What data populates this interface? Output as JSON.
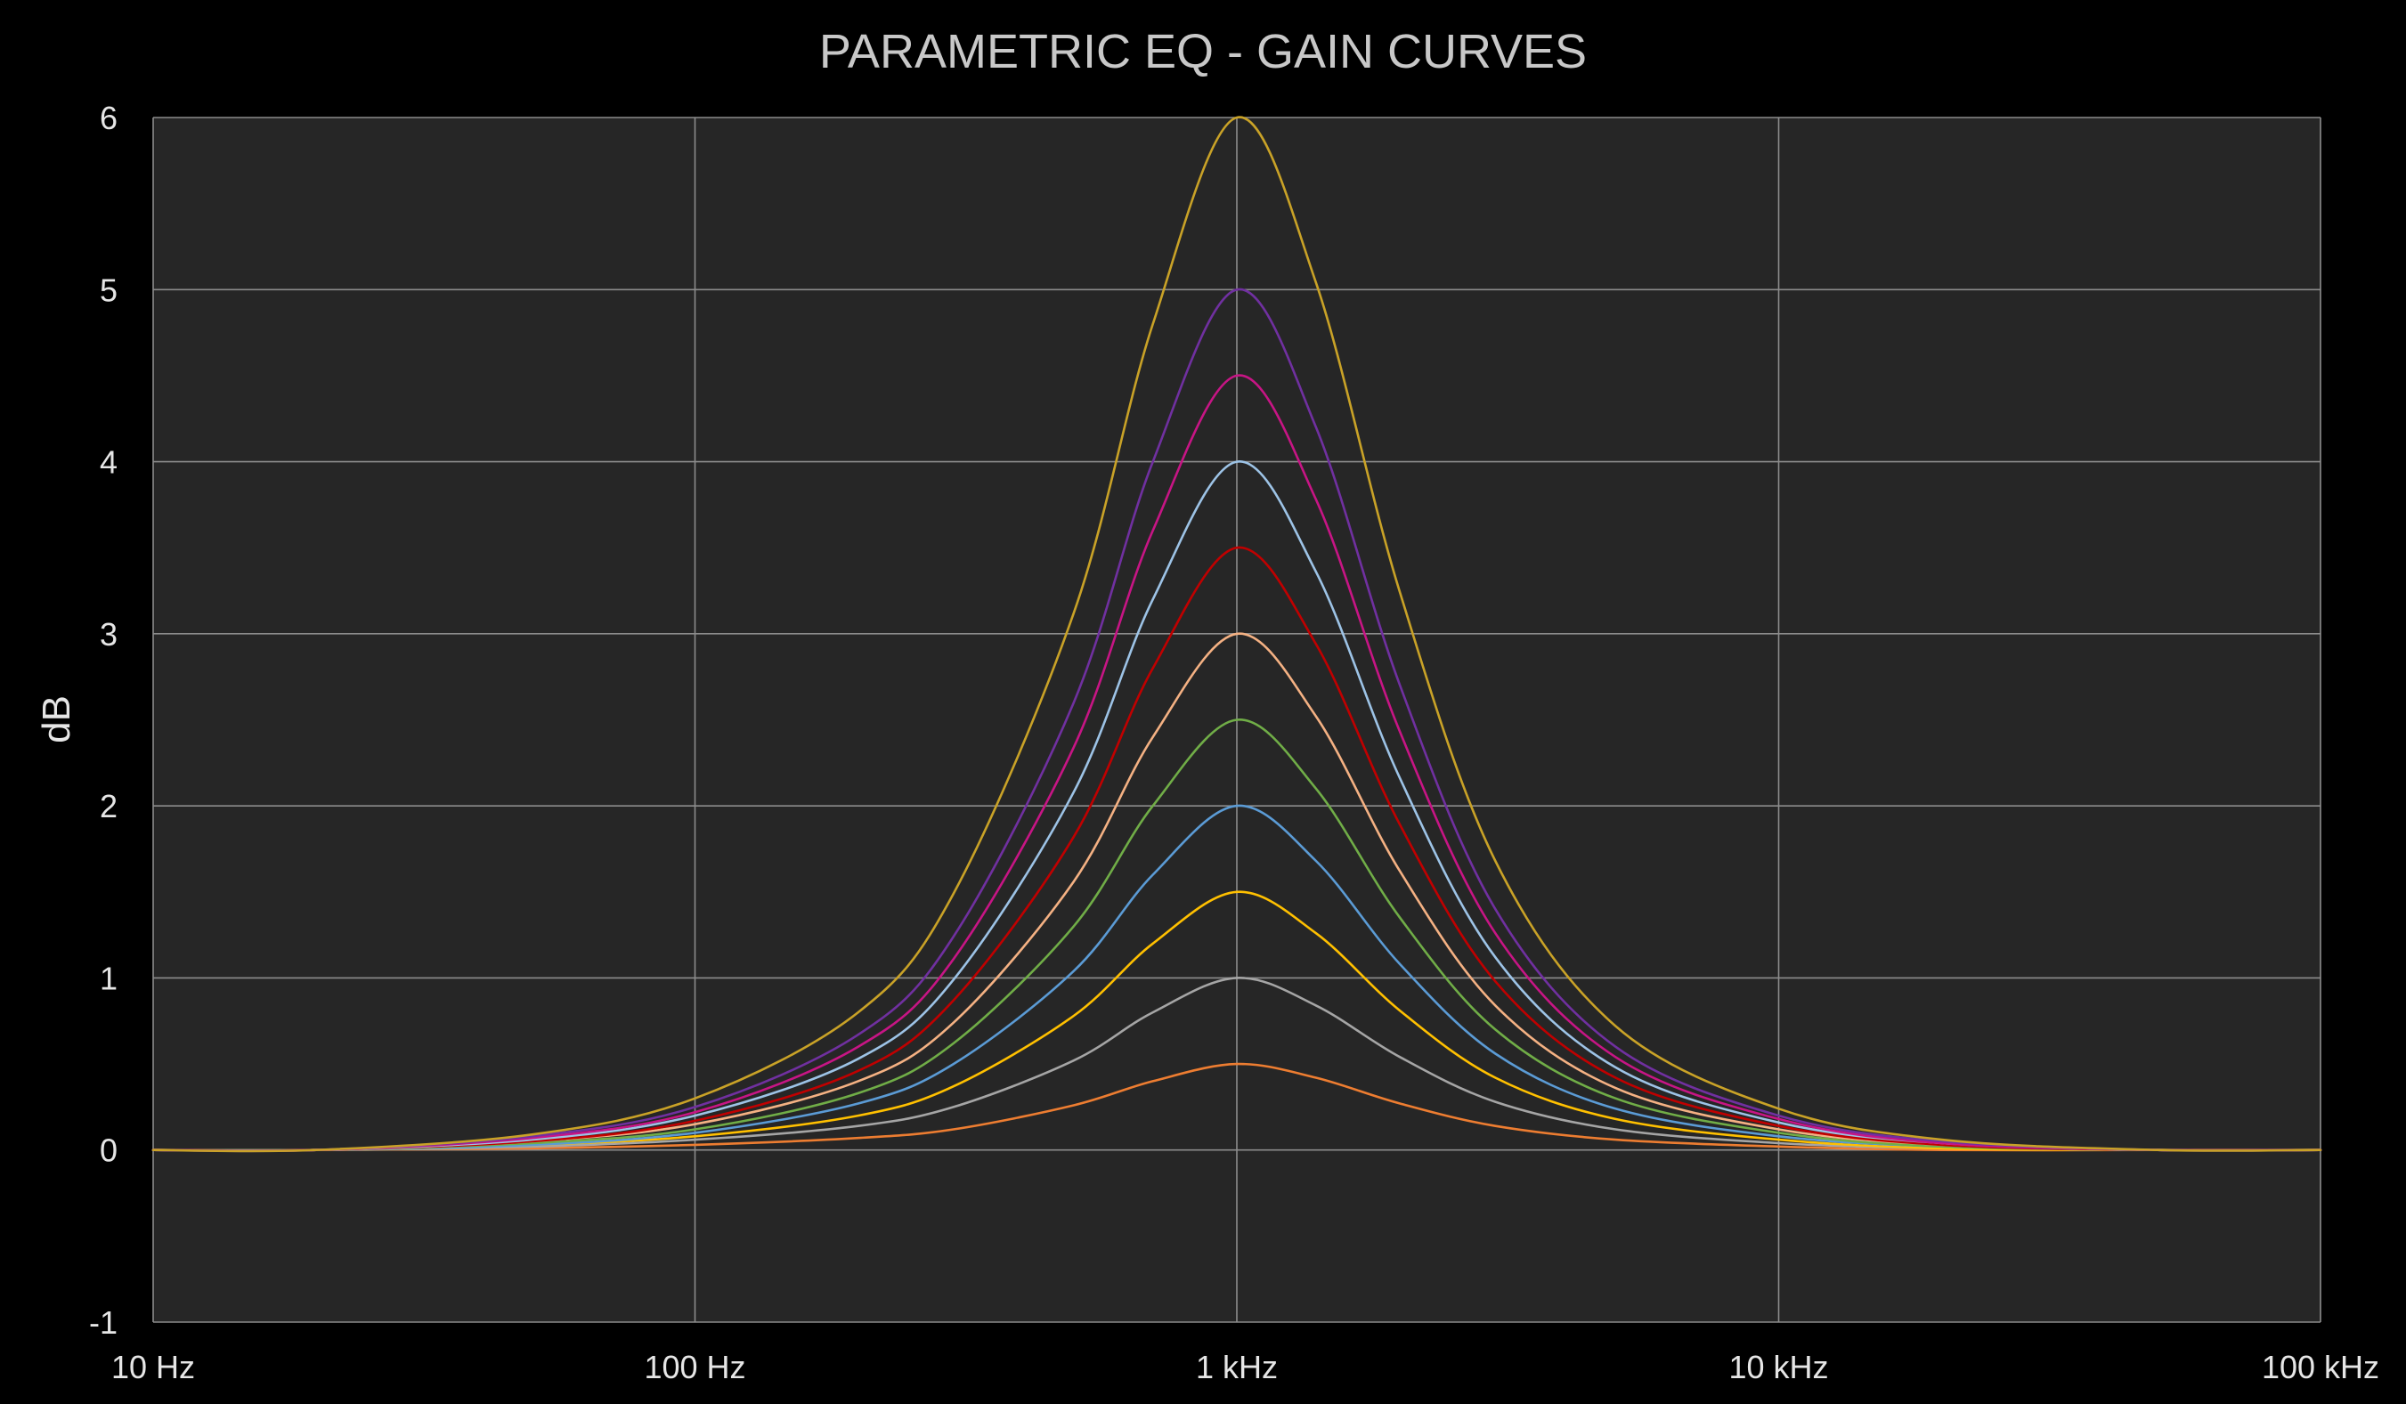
{
  "chart_data": {
    "type": "line",
    "title": "PARAMETRIC EQ - GAIN CURVES",
    "xlabel": "",
    "ylabel": "dB",
    "x_scale": "log",
    "xlim": [
      10,
      100000
    ],
    "ylim": [
      -1,
      6
    ],
    "x_ticks": [
      {
        "value": 10,
        "label": "10 Hz"
      },
      {
        "value": 100,
        "label": "100 Hz"
      },
      {
        "value": 1000,
        "label": "1 kHz"
      },
      {
        "value": 10000,
        "label": "10 kHz"
      },
      {
        "value": 100000,
        "label": "100 kHz"
      }
    ],
    "y_ticks": [
      {
        "value": -1,
        "label": "-1"
      },
      {
        "value": 0,
        "label": "0"
      },
      {
        "value": 1,
        "label": "1"
      },
      {
        "value": 2,
        "label": "2"
      },
      {
        "value": 3,
        "label": "3"
      },
      {
        "value": 4,
        "label": "4"
      },
      {
        "value": 5,
        "label": "5"
      },
      {
        "value": 6,
        "label": "6"
      }
    ],
    "grid": true,
    "legend": "none",
    "center_frequency_hz": 1000,
    "x": [
      10,
      20,
      50,
      100,
      200,
      300,
      500,
      700,
      1000,
      1400,
      2000,
      3000,
      5000,
      10000,
      20000,
      50000,
      100000
    ],
    "series": [
      {
        "color": "#ed7d31",
        "values": [
          0.0,
          0.0,
          0.01,
          0.03,
          0.07,
          0.12,
          0.26,
          0.4,
          0.5,
          0.42,
          0.27,
          0.14,
          0.06,
          0.02,
          0.0,
          0.0,
          0.0
        ]
      },
      {
        "color": "#a5a5a5",
        "values": [
          0.0,
          0.0,
          0.02,
          0.06,
          0.14,
          0.25,
          0.52,
          0.8,
          1.0,
          0.84,
          0.54,
          0.28,
          0.12,
          0.04,
          0.01,
          0.0,
          0.0
        ]
      },
      {
        "color": "#ffc000",
        "values": [
          0.0,
          0.0,
          0.03,
          0.08,
          0.2,
          0.37,
          0.78,
          1.2,
          1.5,
          1.26,
          0.81,
          0.42,
          0.18,
          0.06,
          0.01,
          0.0,
          0.0
        ]
      },
      {
        "color": "#5b9bd5",
        "values": [
          0.0,
          0.0,
          0.03,
          0.1,
          0.27,
          0.5,
          1.04,
          1.6,
          2.0,
          1.68,
          1.08,
          0.56,
          0.24,
          0.08,
          0.02,
          0.0,
          0.0
        ]
      },
      {
        "color": "#70ad47",
        "values": [
          0.0,
          0.0,
          0.04,
          0.12,
          0.33,
          0.62,
          1.3,
          2.0,
          2.5,
          2.1,
          1.35,
          0.7,
          0.3,
          0.1,
          0.02,
          0.0,
          0.0
        ]
      },
      {
        "color": "#f4b183",
        "values": [
          0.0,
          0.0,
          0.05,
          0.15,
          0.4,
          0.74,
          1.56,
          2.4,
          3.0,
          2.52,
          1.62,
          0.84,
          0.36,
          0.12,
          0.03,
          0.0,
          0.0
        ]
      },
      {
        "color": "#c00000",
        "values": [
          0.0,
          0.0,
          0.05,
          0.17,
          0.46,
          0.87,
          1.82,
          2.8,
          3.5,
          2.94,
          1.89,
          0.98,
          0.42,
          0.14,
          0.03,
          0.0,
          0.0
        ]
      },
      {
        "color": "#9dc3e6",
        "values": [
          0.0,
          0.0,
          0.06,
          0.2,
          0.53,
          0.99,
          2.08,
          3.2,
          4.0,
          3.36,
          2.16,
          1.12,
          0.48,
          0.16,
          0.04,
          0.0,
          0.0
        ]
      },
      {
        "color": "#c71585",
        "values": [
          0.0,
          0.0,
          0.07,
          0.22,
          0.6,
          1.11,
          2.34,
          3.6,
          4.5,
          3.78,
          2.43,
          1.26,
          0.54,
          0.18,
          0.04,
          0.0,
          0.0
        ]
      },
      {
        "color": "#7030a0",
        "values": [
          0.0,
          0.0,
          0.08,
          0.25,
          0.67,
          1.24,
          2.6,
          4.0,
          5.0,
          4.2,
          2.7,
          1.4,
          0.6,
          0.2,
          0.05,
          0.0,
          0.0
        ]
      },
      {
        "color": "#c9a227",
        "values": [
          0.0,
          0.0,
          0.09,
          0.3,
          0.8,
          1.49,
          3.12,
          4.8,
          6.0,
          5.04,
          3.24,
          1.68,
          0.72,
          0.24,
          0.06,
          0.0,
          0.0
        ]
      }
    ]
  }
}
